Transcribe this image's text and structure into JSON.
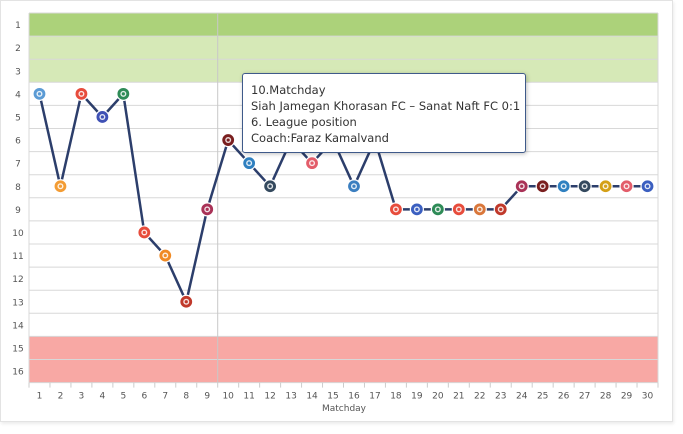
{
  "chart_data": {
    "type": "line",
    "xlabel": "Matchday",
    "x": [
      1,
      2,
      3,
      4,
      5,
      6,
      7,
      8,
      9,
      10,
      11,
      12,
      13,
      14,
      15,
      16,
      17,
      18,
      19,
      20,
      21,
      22,
      23,
      24,
      25,
      26,
      27,
      28,
      29,
      30
    ],
    "series": [
      {
        "values": [
          4,
          8,
          4,
          5,
          4,
          10,
          11,
          13,
          9,
          6,
          7,
          8,
          6,
          7,
          6,
          8,
          6,
          9,
          9,
          9,
          9,
          9,
          9,
          8,
          8,
          8,
          8,
          8,
          8,
          8
        ]
      }
    ],
    "ylim": [
      1,
      16
    ],
    "y_reversed": true,
    "y_ticks": [
      1,
      2,
      3,
      4,
      5,
      6,
      7,
      8,
      9,
      10,
      11,
      12,
      13,
      14,
      15,
      16
    ],
    "bands": [
      {
        "from": 1,
        "to": 1,
        "color": "#acd27a"
      },
      {
        "from": 2,
        "to": 3,
        "color": "#d6e9b7"
      },
      {
        "from": 15,
        "to": 16,
        "color": "#f8a8a4"
      }
    ],
    "grid": true,
    "line_color": "#2c3e6b",
    "crosshair_x": 10,
    "markers": [
      "#5b9bd5",
      "#f39c34",
      "#e74c3c",
      "#3f51b5",
      "#2e8b57",
      "#e74c3c",
      "#f08a24",
      "#c0392b",
      "#a93257",
      "#7a1f1f",
      "#2f80c0",
      "#34495e",
      "#e74c3c",
      "#e35d6a",
      "#c0392b",
      "#3b7fc0",
      "#2c3e50",
      "#e74c3c",
      "#3b5fc0",
      "#2e8b57",
      "#e74c3c",
      "#d9773b",
      "#c0392b",
      "#a93257",
      "#7a1f1f",
      "#2f80c0",
      "#34495e",
      "#d4a017",
      "#e35d6a",
      "#3b5fc0"
    ]
  },
  "tooltip": {
    "line1": "10.Matchday",
    "line2": "Siah Jamegan Khorasan FC – Sanat Naft FC 0:1",
    "line3": "6. League position",
    "line4": "Coach:Faraz Kamalvand"
  }
}
